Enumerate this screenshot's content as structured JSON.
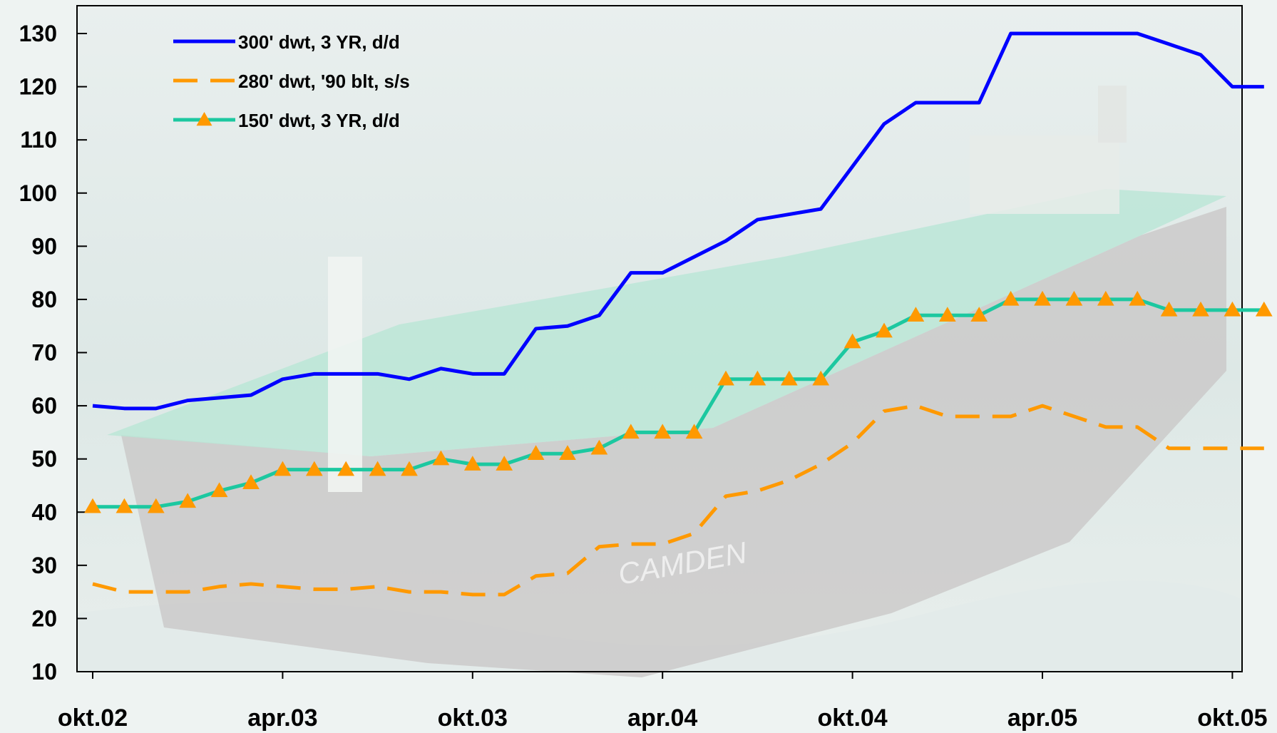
{
  "chart_data": {
    "type": "line",
    "title": "",
    "xlabel": "",
    "ylabel": "",
    "ylim": [
      10,
      130
    ],
    "yticks": [
      10,
      20,
      30,
      40,
      50,
      60,
      70,
      80,
      90,
      100,
      110,
      120,
      130
    ],
    "xtick_labels": [
      "okt.02",
      "apr.03",
      "okt.03",
      "apr.04",
      "okt.04",
      "apr.05",
      "okt.05"
    ],
    "x": [
      0,
      1,
      2,
      3,
      4,
      5,
      6,
      7,
      8,
      9,
      10,
      11,
      12,
      13,
      14,
      15,
      16,
      17,
      18,
      19,
      20,
      21,
      22,
      23,
      24,
      25,
      26,
      27,
      28,
      29,
      30,
      31,
      32,
      33,
      34,
      35,
      36,
      37
    ],
    "grid": false,
    "legend_position": "top-left",
    "background": "faded photo of a tanker ship \"CAMDEN\" at sea",
    "series": [
      {
        "name": "300' dwt, 3 YR, d/d",
        "color": "#0000FF",
        "style": "solid",
        "marker": "none",
        "values": [
          60,
          59.5,
          59.5,
          61,
          61.5,
          62,
          65,
          66,
          66,
          66,
          65,
          67,
          66,
          66,
          74.5,
          75,
          77,
          85,
          85,
          88,
          91,
          95,
          96,
          97,
          105,
          113,
          117,
          117,
          117,
          130,
          130,
          130,
          130,
          130,
          128,
          126,
          120,
          120
        ]
      },
      {
        "name": "280' dwt, '90 blt, s/s",
        "color": "#FF9900",
        "style": "dashed",
        "marker": "none",
        "values": [
          26.5,
          25,
          25,
          25,
          26,
          26.5,
          26,
          25.5,
          25.5,
          26,
          25,
          25,
          24.5,
          24.5,
          28,
          28.5,
          33.5,
          34,
          34,
          36,
          43,
          44,
          46,
          49,
          53,
          59,
          60,
          58,
          58,
          58,
          60,
          58,
          56,
          56,
          52,
          52,
          52,
          52
        ]
      },
      {
        "name": "150' dwt, 3 YR, d/d",
        "color": "#1CC8A0",
        "style": "solid",
        "marker": "triangle",
        "marker_color": "#FF9900",
        "values": [
          41,
          41,
          41,
          42,
          44,
          45.5,
          48,
          48,
          48,
          48,
          48,
          50,
          49,
          49,
          51,
          51,
          52,
          55,
          55,
          55,
          65,
          65,
          65,
          65,
          72,
          74,
          77,
          77,
          77,
          80,
          80,
          80,
          80,
          80,
          78,
          78,
          78,
          78
        ]
      }
    ]
  }
}
